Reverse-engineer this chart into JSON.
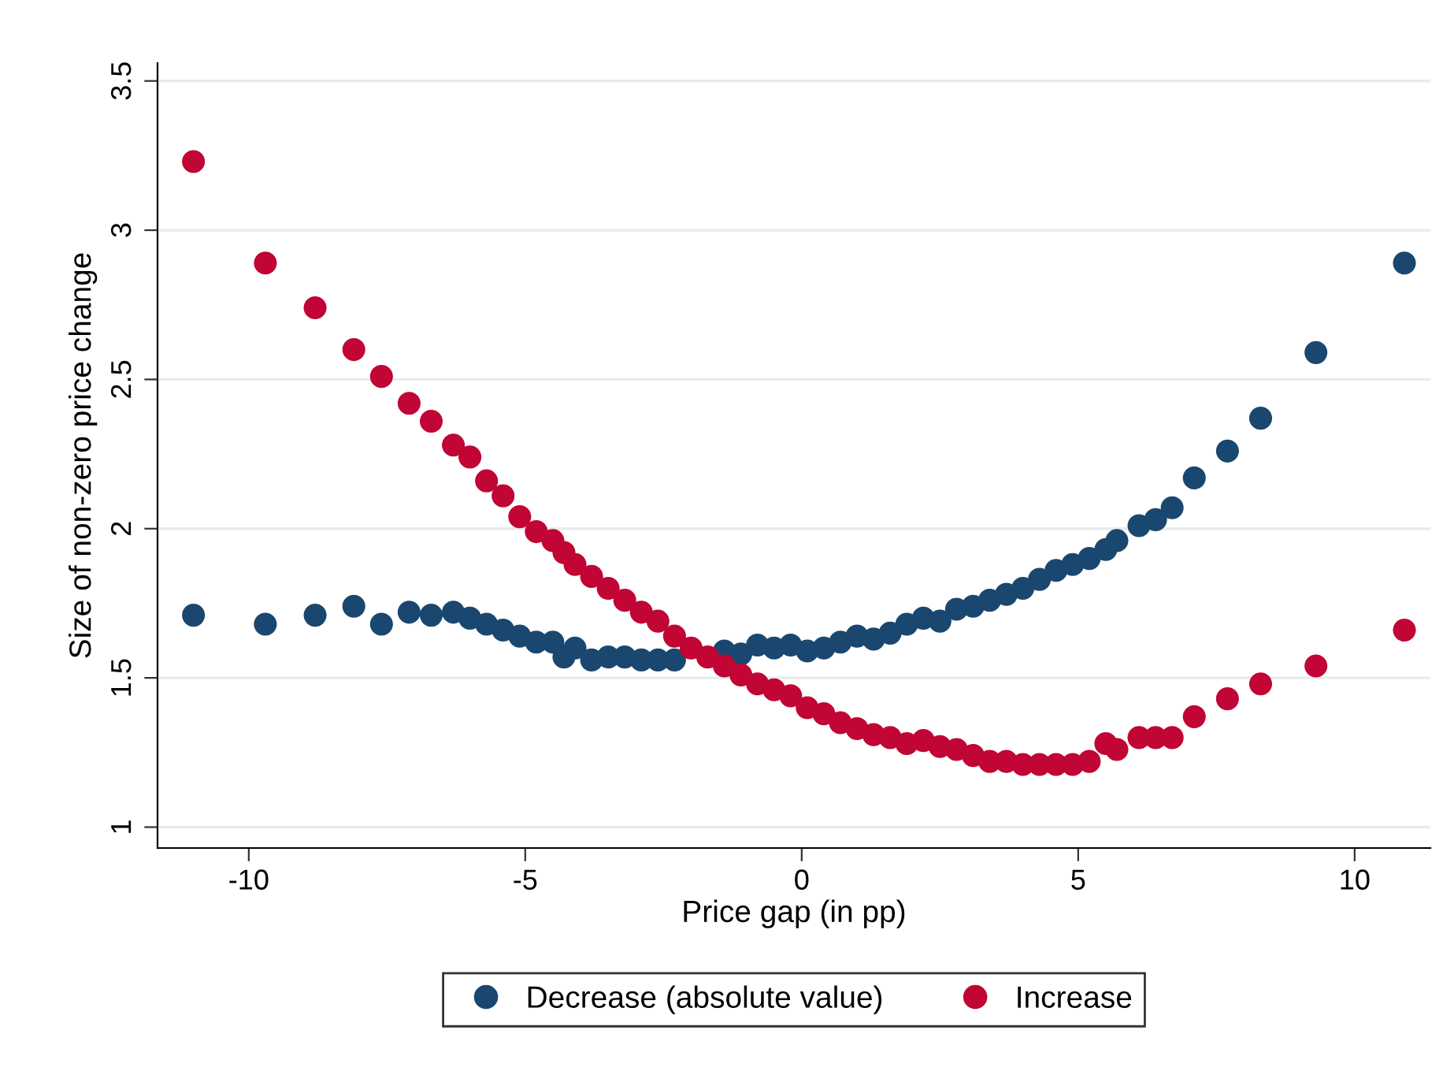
{
  "chart_data": {
    "type": "scatter",
    "xlabel": "Price gap (in pp)",
    "ylabel": "Size of non-zero price change",
    "x": [
      -11.0,
      -9.7,
      -8.8,
      -8.1,
      -7.6,
      -7.1,
      -6.7,
      -6.3,
      -6.0,
      -5.7,
      -5.4,
      -5.1,
      -4.8,
      -4.5,
      -4.3,
      -4.1,
      -3.8,
      -3.5,
      -3.2,
      -2.9,
      -2.6,
      -2.3,
      -2.0,
      -1.7,
      -1.4,
      -1.1,
      -0.8,
      -0.5,
      -0.2,
      0.1,
      0.4,
      0.7,
      1.0,
      1.3,
      1.6,
      1.9,
      2.2,
      2.5,
      2.8,
      3.1,
      3.4,
      3.7,
      4.0,
      4.3,
      4.6,
      4.9,
      5.2,
      5.5,
      5.7,
      6.1,
      6.4,
      6.7,
      7.1,
      7.7,
      8.3,
      9.3,
      10.9
    ],
    "series": [
      {
        "name": "Decrease (absolute value)",
        "color": "#1a476f",
        "values": [
          1.71,
          1.68,
          1.71,
          1.74,
          1.68,
          1.72,
          1.71,
          1.72,
          1.7,
          1.68,
          1.66,
          1.64,
          1.62,
          1.62,
          1.57,
          1.6,
          1.56,
          1.57,
          1.57,
          1.56,
          1.56,
          1.56,
          null,
          null,
          1.59,
          1.58,
          1.61,
          1.6,
          1.61,
          1.59,
          1.6,
          1.62,
          1.64,
          1.63,
          1.65,
          1.68,
          1.7,
          1.69,
          1.73,
          1.74,
          1.76,
          1.78,
          1.8,
          1.83,
          1.86,
          1.88,
          1.9,
          1.93,
          1.96,
          2.01,
          2.03,
          2.07,
          2.17,
          2.26,
          2.37,
          2.59,
          2.89
        ]
      },
      {
        "name": "Increase",
        "color": "#c10534",
        "values": [
          3.23,
          2.89,
          2.74,
          2.6,
          2.51,
          2.42,
          2.36,
          2.28,
          2.24,
          2.16,
          2.11,
          2.04,
          1.99,
          1.96,
          1.92,
          1.88,
          1.84,
          1.8,
          1.76,
          1.72,
          1.69,
          1.64,
          1.6,
          1.57,
          1.54,
          1.51,
          1.48,
          1.46,
          1.44,
          1.4,
          1.38,
          1.35,
          1.33,
          1.31,
          1.3,
          1.28,
          1.29,
          1.27,
          1.26,
          1.24,
          1.22,
          1.22,
          1.21,
          1.21,
          1.21,
          1.21,
          1.22,
          1.28,
          1.26,
          1.3,
          1.3,
          1.3,
          1.37,
          1.43,
          1.48,
          1.54,
          1.66
        ]
      }
    ],
    "xlim": [
      -11.65,
      11.37
    ],
    "ylim": [
      0.93,
      3.56
    ],
    "xticks": [
      -10,
      -5,
      0,
      5,
      10
    ],
    "yticks": [
      1,
      1.5,
      2,
      2.5,
      3,
      3.5
    ],
    "grid": "y",
    "legend": "bottom",
    "marker": "circle"
  }
}
